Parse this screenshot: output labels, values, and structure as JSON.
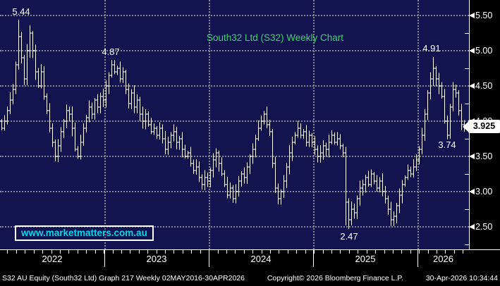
{
  "title": "South32 Ltd (S32) Weekly Chart",
  "watermark": "www.marketmatters.com.au",
  "price_tag": "3.925",
  "annotations": {
    "peak_2022": "5.44",
    "peak_2023": "4.87",
    "low_2025": "2.47",
    "peak_2026": "4.91",
    "low_2026": "3.74"
  },
  "y_axis_labels": [
    "5.50",
    "5.00",
    "4.50",
    "4.00",
    "3.50",
    "3.00",
    "2.50"
  ],
  "x_axis_years": [
    "2022",
    "2023",
    "2024",
    "2025",
    "2026"
  ],
  "status_bar": {
    "left": "S32 AU Equity (South32 Ltd) Graph 217 Weekly 02MAY2016-30APR2026",
    "center": "Copyright© 2026 Bloomberg Finance L.P.",
    "right": "30-Apr-2026 10:34:44"
  },
  "colors": {
    "background": "#000000",
    "plot_bg": "#131350",
    "grid": "#9b9b9b",
    "bar": "#ffffff",
    "title_green": "#3fd06e",
    "watermark_cyan": "#0bd3e8",
    "axis_text": "#ffffff",
    "price_tag_bg": "#ffffff",
    "price_tag_text": "#000000"
  },
  "chart_data": {
    "type": "ohlc_bar",
    "title": "South32 Ltd (S32) Weekly Chart",
    "interval": "weekly",
    "ticker": "S32 AU Equity",
    "y_axis_range": [
      2.35,
      5.62
    ],
    "y_gridlines": [
      5.5,
      5.0,
      4.5,
      4.0,
      3.5,
      3.0,
      2.5
    ],
    "y_minor_step": 0.25,
    "grid": "dotted",
    "years": [
      "2022",
      "2023",
      "2024",
      "2025",
      "2026"
    ],
    "year_start_index": [
      0,
      37,
      74,
      111,
      148
    ],
    "last_price": 3.925,
    "key_points": [
      {
        "label": "5.44",
        "type": "high",
        "index": 6
      },
      {
        "label": "4.87",
        "type": "high",
        "index": 39
      },
      {
        "label": "2.47",
        "type": "low",
        "index": 123
      },
      {
        "label": "4.91",
        "type": "high",
        "index": 153
      },
      {
        "label": "3.74",
        "type": "low",
        "index": 158
      }
    ],
    "extreme_overrides": [
      [
        6,
        "h",
        5.44
      ],
      [
        10,
        "h",
        5.36
      ],
      [
        39,
        "h",
        4.87
      ],
      [
        122,
        "l",
        2.52
      ],
      [
        123,
        "l",
        2.47
      ],
      [
        153,
        "h",
        4.91
      ],
      [
        158,
        "l",
        3.74
      ],
      [
        164,
        "l",
        3.85
      ]
    ],
    "closes": [
      3.9,
      4.0,
      4.15,
      4.3,
      4.45,
      4.8,
      5.2,
      4.9,
      4.6,
      5.0,
      5.25,
      5.0,
      4.7,
      4.5,
      4.7,
      4.35,
      4.15,
      3.9,
      3.7,
      3.5,
      3.65,
      3.85,
      4.0,
      4.15,
      4.1,
      3.9,
      3.6,
      3.5,
      3.7,
      3.9,
      4.05,
      4.2,
      4.1,
      4.3,
      4.2,
      4.35,
      4.3,
      4.5,
      4.65,
      4.8,
      4.7,
      4.75,
      4.6,
      4.7,
      4.45,
      4.25,
      4.4,
      4.2,
      4.3,
      4.1,
      4.0,
      4.1,
      3.95,
      3.85,
      3.9,
      3.8,
      3.9,
      3.75,
      3.6,
      3.7,
      3.8,
      3.85,
      3.7,
      3.75,
      3.6,
      3.5,
      3.55,
      3.4,
      3.3,
      3.35,
      3.2,
      3.1,
      3.2,
      3.15,
      3.3,
      3.45,
      3.55,
      3.4,
      3.25,
      3.1,
      2.95,
      3.05,
      2.9,
      3.0,
      3.15,
      3.25,
      3.2,
      3.35,
      3.5,
      3.6,
      3.75,
      3.9,
      4.0,
      4.1,
      3.95,
      3.85,
      3.4,
      3.05,
      2.9,
      3.0,
      3.15,
      3.35,
      3.55,
      3.7,
      3.8,
      3.9,
      3.8,
      3.85,
      3.7,
      3.8,
      3.7,
      3.6,
      3.5,
      3.55,
      3.65,
      3.6,
      3.7,
      3.8,
      3.7,
      3.75,
      3.65,
      3.55,
      2.85,
      2.6,
      2.75,
      2.7,
      2.9,
      3.05,
      3.1,
      3.2,
      3.1,
      3.25,
      3.15,
      3.05,
      3.15,
      3.0,
      2.9,
      2.75,
      2.6,
      2.65,
      2.8,
      2.95,
      3.1,
      3.2,
      3.3,
      3.25,
      3.35,
      3.45,
      3.6,
      3.8,
      4.1,
      4.4,
      4.6,
      4.75,
      4.6,
      4.5,
      4.35,
      4.0,
      3.8,
      4.2,
      4.45,
      4.4,
      4.15,
      3.95,
      3.925
    ]
  }
}
